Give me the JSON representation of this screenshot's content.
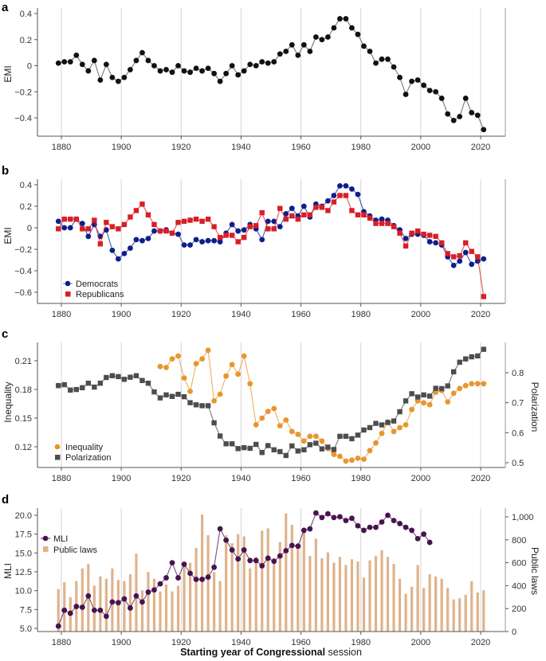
{
  "figure": {
    "xlabel_bold": "Starting year of Congressional",
    "xlabel_regular": " session"
  },
  "chart_data": [
    {
      "panel": "a",
      "type": "line",
      "title": "",
      "xlabel": "",
      "ylabel": "EMI",
      "xlim": [
        1873,
        2029
      ],
      "ylim": [
        -0.53,
        0.42
      ],
      "xticks": [
        1880,
        1900,
        1920,
        1940,
        1960,
        1980,
        2000,
        2020
      ],
      "yticks": [
        0.4,
        0.2,
        0,
        -0.2,
        -0.4
      ],
      "ytick_labels": [
        "0.4",
        "0.2",
        "0",
        "−0.2",
        "−0.4"
      ],
      "grid": "vertical",
      "x": [
        1879,
        1881,
        1883,
        1885,
        1887,
        1889,
        1891,
        1893,
        1895,
        1897,
        1899,
        1901,
        1903,
        1905,
        1907,
        1909,
        1911,
        1913,
        1915,
        1917,
        1919,
        1921,
        1923,
        1925,
        1927,
        1929,
        1931,
        1933,
        1935,
        1937,
        1939,
        1941,
        1943,
        1945,
        1947,
        1949,
        1951,
        1953,
        1955,
        1957,
        1959,
        1961,
        1963,
        1965,
        1967,
        1969,
        1971,
        1973,
        1975,
        1977,
        1979,
        1981,
        1983,
        1985,
        1987,
        1989,
        1991,
        1993,
        1995,
        1997,
        1999,
        2001,
        2003,
        2005,
        2007,
        2009,
        2011,
        2013,
        2015,
        2017,
        2019,
        2021
      ],
      "series": [
        {
          "name": "EMI",
          "color": "#111111",
          "values": [
            0.02,
            0.03,
            0.03,
            0.08,
            0.01,
            -0.04,
            0.04,
            -0.11,
            0.01,
            -0.09,
            -0.12,
            -0.09,
            -0.03,
            0.04,
            0.1,
            0.04,
            0.0,
            -0.04,
            -0.03,
            -0.05,
            0.0,
            -0.04,
            -0.05,
            -0.02,
            -0.04,
            -0.02,
            -0.06,
            -0.12,
            -0.06,
            0.0,
            -0.07,
            -0.04,
            0.01,
            0.0,
            0.03,
            0.02,
            0.03,
            0.09,
            0.11,
            0.16,
            0.08,
            0.16,
            0.11,
            0.22,
            0.2,
            0.22,
            0.29,
            0.36,
            0.36,
            0.29,
            0.24,
            0.15,
            0.11,
            0.02,
            0.05,
            0.05,
            -0.01,
            -0.09,
            -0.22,
            -0.12,
            -0.11,
            -0.15,
            -0.19,
            -0.2,
            -0.25,
            -0.37,
            -0.42,
            -0.39,
            -0.25,
            -0.36,
            -0.38,
            -0.49
          ]
        }
      ]
    },
    {
      "panel": "b",
      "type": "line",
      "ylabel": "EMI",
      "xlim": [
        1873,
        2029
      ],
      "ylim": [
        -0.69,
        0.46
      ],
      "xticks": [
        1880,
        1900,
        1920,
        1940,
        1960,
        1980,
        2000,
        2020
      ],
      "yticks": [
        0.4,
        0.2,
        0,
        -0.2,
        -0.4,
        -0.6
      ],
      "ytick_labels": [
        "0.4",
        "0.2",
        "0",
        "−0.2",
        "−0.4",
        "−0.6"
      ],
      "grid": "vertical",
      "legend": "bottom-left",
      "x": [
        1879,
        1881,
        1883,
        1885,
        1887,
        1889,
        1891,
        1893,
        1895,
        1897,
        1899,
        1901,
        1903,
        1905,
        1907,
        1909,
        1911,
        1913,
        1915,
        1917,
        1919,
        1921,
        1923,
        1925,
        1927,
        1929,
        1931,
        1933,
        1935,
        1937,
        1939,
        1941,
        1943,
        1945,
        1947,
        1949,
        1951,
        1953,
        1955,
        1957,
        1959,
        1961,
        1963,
        1965,
        1967,
        1969,
        1971,
        1973,
        1975,
        1977,
        1979,
        1981,
        1983,
        1985,
        1987,
        1989,
        1991,
        1993,
        1995,
        1997,
        1999,
        2001,
        2003,
        2005,
        2007,
        2009,
        2011,
        2013,
        2015,
        2017,
        2019,
        2021
      ],
      "series": [
        {
          "name": "Democrats",
          "color": "#0d1f8c",
          "marker": "circle",
          "values": [
            0.06,
            0.0,
            0.0,
            0.08,
            0.04,
            -0.08,
            0.03,
            -0.08,
            -0.02,
            -0.21,
            -0.29,
            -0.24,
            -0.19,
            -0.11,
            -0.12,
            -0.1,
            -0.03,
            -0.03,
            -0.02,
            -0.05,
            -0.06,
            -0.16,
            -0.16,
            -0.11,
            -0.13,
            -0.12,
            -0.12,
            -0.13,
            -0.05,
            0.03,
            -0.03,
            -0.02,
            0.03,
            -0.01,
            -0.11,
            0.06,
            0.06,
            0.01,
            0.13,
            0.18,
            0.11,
            0.2,
            0.1,
            0.22,
            0.2,
            0.25,
            0.3,
            0.39,
            0.39,
            0.36,
            0.31,
            0.15,
            0.11,
            0.07,
            0.08,
            0.07,
            0.02,
            -0.02,
            -0.1,
            -0.06,
            -0.06,
            -0.07,
            -0.13,
            -0.14,
            -0.16,
            -0.27,
            -0.35,
            -0.31,
            -0.23,
            -0.34,
            -0.31,
            -0.29
          ]
        },
        {
          "name": "Republicans",
          "color": "#d91e26",
          "marker": "square",
          "values": [
            -0.01,
            0.08,
            0.08,
            0.08,
            -0.01,
            -0.01,
            0.07,
            -0.15,
            0.05,
            0.01,
            -0.01,
            0.03,
            0.1,
            0.16,
            0.22,
            0.12,
            0.03,
            -0.03,
            -0.03,
            -0.05,
            0.05,
            0.06,
            0.07,
            0.08,
            0.06,
            0.08,
            0.01,
            -0.09,
            -0.07,
            -0.07,
            -0.13,
            -0.09,
            0.01,
            0.02,
            0.14,
            -0.01,
            -0.01,
            0.18,
            0.08,
            0.11,
            0.08,
            0.12,
            0.12,
            0.19,
            0.19,
            0.16,
            0.24,
            0.3,
            0.3,
            0.16,
            0.12,
            0.12,
            0.09,
            0.04,
            0.04,
            0.04,
            0.01,
            -0.05,
            -0.17,
            -0.05,
            -0.03,
            -0.06,
            -0.07,
            -0.08,
            -0.14,
            -0.24,
            -0.27,
            -0.26,
            -0.14,
            -0.22,
            -0.27,
            -0.64
          ]
        }
      ]
    },
    {
      "panel": "c",
      "type": "line",
      "ylabel": "Inequality",
      "ylabel_right": "Polarization",
      "xlim": [
        1873,
        2029
      ],
      "ylim": [
        0.098,
        0.228
      ],
      "ylim_right": [
        0.48,
        0.895
      ],
      "xticks": [
        1880,
        1900,
        1920,
        1940,
        1960,
        1980,
        2000,
        2020
      ],
      "yticks": [
        0.21,
        0.18,
        0.15,
        0.12
      ],
      "ytick_labels": [
        "0.21",
        "0.18",
        "0.15",
        "0.12"
      ],
      "yticks_right": [
        0.8,
        0.7,
        0.6,
        0.5
      ],
      "ytick_labels_right": [
        "0.8",
        "0.7",
        "0.6",
        "0.5"
      ],
      "grid": "vertical",
      "legend": "bottom-left",
      "series": [
        {
          "name": "Inequality",
          "color": "#e8962e",
          "marker": "circle",
          "axis": "left",
          "x": [
            1913,
            1915,
            1917,
            1919,
            1921,
            1923,
            1925,
            1927,
            1929,
            1931,
            1933,
            1935,
            1937,
            1939,
            1941,
            1943,
            1945,
            1947,
            1949,
            1951,
            1953,
            1955,
            1957,
            1959,
            1961,
            1963,
            1965,
            1967,
            1969,
            1971,
            1973,
            1975,
            1977,
            1979,
            1981,
            1983,
            1985,
            1987,
            1989,
            1991,
            1993,
            1995,
            1997,
            1999,
            2001,
            2003,
            2005,
            2007,
            2009,
            2011,
            2013,
            2015,
            2017,
            2019,
            2021
          ],
          "values": [
            0.204,
            0.203,
            0.212,
            0.215,
            0.192,
            0.178,
            0.207,
            0.212,
            0.221,
            0.168,
            0.175,
            0.194,
            0.206,
            0.196,
            0.215,
            0.186,
            0.143,
            0.15,
            0.157,
            0.16,
            0.142,
            0.148,
            0.136,
            0.133,
            0.126,
            0.131,
            0.131,
            0.126,
            0.118,
            0.112,
            0.11,
            0.105,
            0.106,
            0.108,
            0.107,
            0.116,
            0.124,
            0.134,
            0.146,
            0.136,
            0.14,
            0.143,
            0.159,
            0.168,
            0.166,
            0.164,
            0.177,
            0.179,
            0.167,
            0.176,
            0.181,
            0.184,
            0.186,
            0.186,
            0.186
          ]
        },
        {
          "name": "Polarization",
          "color": "#4d4d4d",
          "marker": "square",
          "axis": "right",
          "x": [
            1879,
            1881,
            1883,
            1885,
            1887,
            1889,
            1891,
            1893,
            1895,
            1897,
            1899,
            1901,
            1903,
            1905,
            1907,
            1909,
            1911,
            1913,
            1915,
            1917,
            1919,
            1921,
            1923,
            1925,
            1927,
            1929,
            1931,
            1933,
            1935,
            1937,
            1939,
            1941,
            1943,
            1945,
            1947,
            1949,
            1951,
            1953,
            1955,
            1957,
            1959,
            1961,
            1963,
            1965,
            1967,
            1969,
            1971,
            1973,
            1975,
            1977,
            1979,
            1981,
            1983,
            1985,
            1987,
            1989,
            1991,
            1993,
            1995,
            1997,
            1999,
            2001,
            2003,
            2005,
            2007,
            2009,
            2011,
            2013,
            2015,
            2017,
            2019,
            2021
          ],
          "values": [
            0.757,
            0.76,
            0.742,
            0.744,
            0.75,
            0.765,
            0.752,
            0.765,
            0.784,
            0.79,
            0.787,
            0.778,
            0.785,
            0.79,
            0.774,
            0.765,
            0.736,
            0.716,
            0.726,
            0.721,
            0.728,
            0.72,
            0.7,
            0.693,
            0.69,
            0.69,
            0.633,
            0.589,
            0.563,
            0.563,
            0.547,
            0.55,
            0.548,
            0.561,
            0.534,
            0.557,
            0.543,
            0.537,
            0.524,
            0.556,
            0.539,
            0.543,
            0.56,
            0.565,
            0.546,
            0.552,
            0.544,
            0.588,
            0.588,
            0.58,
            0.592,
            0.609,
            0.617,
            0.631,
            0.626,
            0.634,
            0.639,
            0.67,
            0.706,
            0.73,
            0.719,
            0.726,
            0.722,
            0.748,
            0.747,
            0.756,
            0.803,
            0.835,
            0.846,
            0.853,
            0.856,
            0.878
          ]
        }
      ]
    },
    {
      "panel": "d",
      "type": "bar+line",
      "ylabel": "MLI",
      "ylabel_right": "Public laws",
      "xlim": [
        1873,
        2029
      ],
      "ylim": [
        4.7,
        21.1
      ],
      "ylim_right": [
        0,
        1100
      ],
      "xticks": [
        1880,
        1900,
        1920,
        1940,
        1960,
        1980,
        2000,
        2020
      ],
      "yticks": [
        20.0,
        17.5,
        15.0,
        12.5,
        10.0,
        7.5,
        5.0
      ],
      "ytick_labels": [
        "20.0",
        "17.5",
        "15.0",
        "12.5",
        "10.0",
        "7.5",
        "5.0"
      ],
      "yticks_right": [
        1000,
        800,
        600,
        400,
        200,
        0
      ],
      "ytick_labels_right": [
        "1,000",
        "800",
        "600",
        "400",
        "200",
        "0"
      ],
      "grid": "vertical",
      "legend": "top-left",
      "series": [
        {
          "name": "MLI",
          "color": "#4a1250",
          "marker": "circle",
          "axis": "left",
          "x": [
            1879,
            1881,
            1883,
            1885,
            1887,
            1889,
            1891,
            1893,
            1895,
            1897,
            1899,
            1901,
            1903,
            1905,
            1907,
            1909,
            1911,
            1913,
            1915,
            1917,
            1919,
            1921,
            1923,
            1925,
            1927,
            1929,
            1931,
            1933,
            1935,
            1937,
            1939,
            1941,
            1943,
            1945,
            1947,
            1949,
            1951,
            1953,
            1955,
            1957,
            1959,
            1961,
            1963,
            1965,
            1967,
            1969,
            1971,
            1973,
            1975,
            1977,
            1979,
            1981,
            1983,
            1985,
            1987,
            1989,
            1991,
            1993,
            1995,
            1997,
            1999,
            2001,
            2003
          ],
          "values": [
            5.3,
            7.4,
            7.0,
            7.9,
            7.8,
            9.3,
            7.4,
            7.4,
            6.6,
            8.5,
            8.4,
            8.9,
            7.7,
            9.3,
            8.5,
            9.8,
            10.1,
            10.9,
            11.7,
            13.7,
            11.7,
            13.5,
            12.3,
            11.5,
            11.5,
            11.8,
            13.1,
            18.2,
            16.7,
            15.4,
            14.2,
            15.4,
            14.0,
            14.0,
            13.3,
            14.3,
            13.9,
            14.6,
            15.3,
            16.0,
            15.9,
            18.0,
            18.2,
            20.3,
            19.7,
            20.2,
            19.7,
            19.8,
            19.3,
            19.6,
            18.6,
            18.0,
            18.4,
            18.4,
            19.1,
            20.0,
            19.3,
            18.9,
            18.4,
            18.0,
            16.9,
            17.5,
            16.4
          ]
        },
        {
          "name": "Public laws",
          "color": "#dfb38c",
          "type": "bar",
          "axis": "right",
          "x": [
            1879,
            1881,
            1883,
            1885,
            1887,
            1889,
            1891,
            1893,
            1895,
            1897,
            1899,
            1901,
            1903,
            1905,
            1907,
            1909,
            1911,
            1913,
            1915,
            1917,
            1919,
            1921,
            1923,
            1925,
            1927,
            1929,
            1931,
            1933,
            1935,
            1937,
            1939,
            1941,
            1943,
            1945,
            1947,
            1949,
            1951,
            1953,
            1955,
            1957,
            1959,
            1961,
            1963,
            1965,
            1967,
            1969,
            1971,
            1973,
            1975,
            1977,
            1979,
            1981,
            1983,
            1985,
            1987,
            1989,
            1991,
            1993,
            1995,
            1997,
            1999,
            2001,
            2003,
            2005,
            2007,
            2009,
            2011,
            2013,
            2015,
            2017,
            2019,
            2021
          ],
          "values": [
            370,
            430,
            300,
            440,
            550,
            590,
            400,
            480,
            460,
            550,
            450,
            440,
            500,
            680,
            360,
            520,
            460,
            350,
            410,
            350,
            400,
            580,
            600,
            730,
            1020,
            840,
            520,
            440,
            840,
            770,
            850,
            830,
            550,
            650,
            880,
            900,
            640,
            780,
            1030,
            930,
            770,
            880,
            660,
            810,
            640,
            690,
            600,
            650,
            580,
            630,
            610,
            470,
            620,
            660,
            710,
            650,
            590,
            460,
            330,
            390,
            580,
            380,
            500,
            480,
            460,
            380,
            280,
            290,
            320,
            440,
            340,
            360
          ]
        }
      ]
    }
  ]
}
